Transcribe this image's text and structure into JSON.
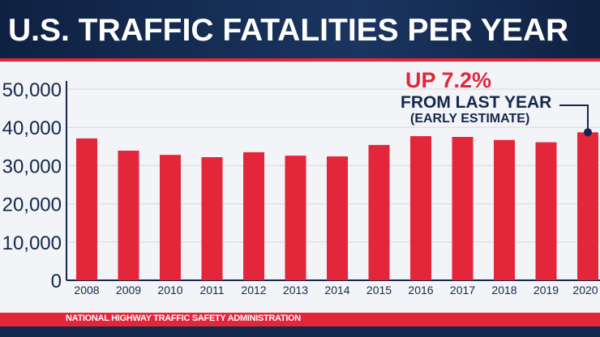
{
  "title": "U.S. TRAFFIC FATALITIES PER YEAR",
  "source": "NATIONAL HIGHWAY TRAFFIC SAFETY ADMINISTRATION",
  "annotation": {
    "line1": "UP 7.2%",
    "line2": "FROM LAST YEAR",
    "line3": "(EARLY ESTIMATE)"
  },
  "colors": {
    "bar": "#e3263a",
    "navy": "#13284c",
    "accent": "#e3263a"
  },
  "chart_data": {
    "type": "bar",
    "categories": [
      "2008",
      "2009",
      "2010",
      "2011",
      "2012",
      "2013",
      "2014",
      "2015",
      "2016",
      "2017",
      "2018",
      "2019",
      "2020"
    ],
    "values": [
      37100,
      33900,
      32800,
      32200,
      33500,
      32600,
      32400,
      35400,
      37700,
      37500,
      36700,
      36100,
      38700
    ],
    "yticks": [
      "0",
      "10,000",
      "20,000",
      "30,000",
      "40,000",
      "50,000"
    ],
    "ylim": [
      0,
      50000
    ],
    "grid": true,
    "title": "U.S. TRAFFIC FATALITIES PER YEAR"
  }
}
